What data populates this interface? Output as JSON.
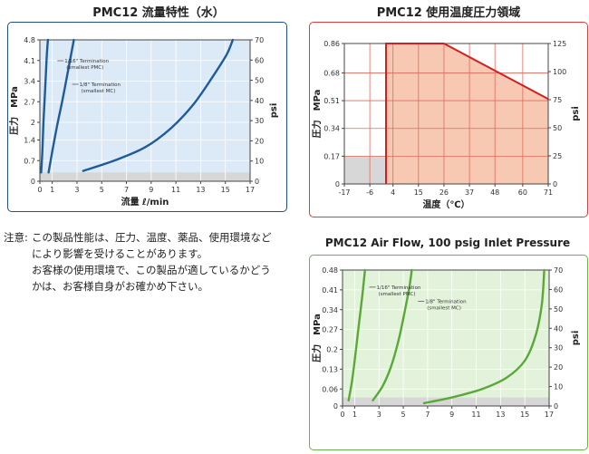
{
  "colors": {
    "water_frame": "#1f4e8c",
    "water_line": "#1f5a9a",
    "water_fill": "#dbeaf6",
    "temp_frame": "#d9403d",
    "temp_line": "#d22020",
    "temp_fill": "#f7c9b2",
    "air_frame": "#6ab04c",
    "air_line": "#5aa83a",
    "air_fill": "#e3f2da",
    "floor_fill": "#d7d7d7"
  },
  "note": {
    "label": "注意:",
    "lines": [
      "この製品性能は、圧力、温度、薬品、使用環境など",
      "により影響を受けることがあります。",
      "お客様の使用環境で、この製品が適しているかどう",
      "かは、お客様自身がお確かめ下さい。"
    ]
  },
  "chart_data": [
    {
      "type": "line",
      "title": "PMC12 流量特性（水）",
      "xlabel": "流量 ℓ/min",
      "ylabel": "圧力　MPa",
      "y2label": "psi",
      "xlim": [
        0,
        17
      ],
      "ylim": [
        0,
        4.8
      ],
      "y2lim": [
        0,
        70
      ],
      "x_ticks": [
        "0",
        "1",
        "3",
        "5",
        "7",
        "9",
        "11",
        "13",
        "15",
        "17"
      ],
      "x_tick_values": [
        0,
        1,
        3,
        5,
        7,
        9,
        11,
        13,
        15,
        17
      ],
      "y_ticks": [
        "0",
        "0.7",
        "1.4",
        "2",
        "2.7",
        "3.4",
        "4.1",
        "4.8"
      ],
      "y_tick_values": [
        0,
        0.7,
        1.4,
        2,
        2.7,
        3.4,
        4.1,
        4.8
      ],
      "y2_ticks": [
        "0",
        "10",
        "20",
        "30",
        "40",
        "50",
        "60",
        "70"
      ],
      "floor_level": 0.3,
      "series": [
        {
          "name": "",
          "points": [
            [
              0.1,
              0.3
            ],
            [
              0.2,
              1.0
            ],
            [
              0.3,
              2.1
            ],
            [
              0.45,
              3.3
            ],
            [
              0.55,
              4.2
            ],
            [
              0.65,
              4.8
            ]
          ]
        },
        {
          "name": "1/16\" Termination (smallest PMC)",
          "points": [
            [
              0.7,
              0.3
            ],
            [
              1.0,
              1.0
            ],
            [
              1.4,
              1.9
            ],
            [
              1.85,
              2.8
            ],
            [
              2.3,
              3.8
            ],
            [
              2.75,
              4.8
            ]
          ]
        },
        {
          "name": "1/8\" Termination (smallest MC)",
          "points": [
            [
              3.5,
              0.35
            ],
            [
              6.0,
              0.7
            ],
            [
              8.5,
              1.15
            ],
            [
              10.6,
              1.8
            ],
            [
              12.4,
              2.6
            ],
            [
              13.9,
              3.5
            ],
            [
              15.1,
              4.3
            ],
            [
              15.6,
              4.8
            ]
          ]
        }
      ],
      "annotations": [
        {
          "text": "1/16\" Termination",
          "text2": "(smallest PMC)",
          "x": 2.0,
          "y": 4.0
        },
        {
          "text": "1/8\" Termination",
          "text2": "(smallest MC)",
          "x": 3.2,
          "y": 3.2
        }
      ]
    },
    {
      "type": "area",
      "title": "PMC12 使用温度圧力領域",
      "xlabel": "温度（℃）",
      "ylabel": "圧力　MPa",
      "y2label": "psi",
      "xlim": [
        -17,
        71
      ],
      "ylim": [
        0,
        0.86
      ],
      "y2lim": [
        0,
        125
      ],
      "x_ticks": [
        "-17",
        "-6",
        "4",
        "15",
        "26",
        "37",
        "48",
        "60",
        "71"
      ],
      "x_tick_values": [
        -17,
        -6,
        4,
        15,
        26,
        37,
        48,
        60,
        71
      ],
      "y_ticks": [
        "0",
        "0.17",
        "0.34",
        "0.51",
        "0.68",
        "0.86"
      ],
      "y_tick_values": [
        0,
        0.17,
        0.34,
        0.51,
        0.68,
        0.86
      ],
      "y2_ticks": [
        "0",
        "25",
        "50",
        "75",
        "100",
        "125"
      ],
      "floor_level": 0.17,
      "series": [
        {
          "name": "",
          "points": [
            [
              1,
              0
            ],
            [
              1,
              0.86
            ],
            [
              26,
              0.86
            ],
            [
              71,
              0.52
            ],
            [
              71,
              0
            ]
          ]
        }
      ]
    },
    {
      "type": "line",
      "title": "PMC12 Air Flow, 100 psig Inlet Pressure",
      "xlabel": "",
      "ylabel": "圧力　MPa",
      "y2label": "psi",
      "xlim": [
        0,
        17
      ],
      "ylim": [
        0,
        0.48
      ],
      "y2lim": [
        0,
        70
      ],
      "x_ticks": [
        "0",
        "1",
        "3",
        "5",
        "7",
        "9",
        "11",
        "13",
        "15",
        "17"
      ],
      "x_tick_values": [
        0,
        1,
        3,
        5,
        7,
        9,
        11,
        13,
        15,
        17
      ],
      "y_ticks": [
        "0",
        "0.06",
        "0.13",
        "0.2",
        "0.27",
        "0.34",
        "0.41",
        "0.48"
      ],
      "y_tick_values": [
        0,
        0.06,
        0.13,
        0.2,
        0.27,
        0.34,
        0.41,
        0.48
      ],
      "y2_ticks": [
        "0",
        "10",
        "20",
        "30",
        "40",
        "50",
        "60",
        "70"
      ],
      "floor_level": 0.03,
      "series": [
        {
          "name": "",
          "points": [
            [
              0.5,
              0.02
            ],
            [
              0.75,
              0.08
            ],
            [
              1.0,
              0.16
            ],
            [
              1.3,
              0.27
            ],
            [
              1.6,
              0.38
            ],
            [
              1.85,
              0.48
            ]
          ]
        },
        {
          "name": "1/16\" Termination (smallest PMC)",
          "points": [
            [
              2.5,
              0.02
            ],
            [
              3.3,
              0.07
            ],
            [
              4.0,
              0.14
            ],
            [
              4.6,
              0.23
            ],
            [
              5.1,
              0.33
            ],
            [
              5.5,
              0.42
            ],
            [
              5.7,
              0.48
            ]
          ]
        },
        {
          "name": "1/8\" Termination (smallest MC)",
          "points": [
            [
              6.7,
              0.01
            ],
            [
              9.0,
              0.03
            ],
            [
              11.5,
              0.06
            ],
            [
              13.5,
              0.1
            ],
            [
              15.0,
              0.16
            ],
            [
              15.9,
              0.25
            ],
            [
              16.4,
              0.36
            ],
            [
              16.6,
              0.48
            ]
          ]
        }
      ],
      "annotations": [
        {
          "text": "1/16\" Termination",
          "text2": "(smallest PMC)",
          "x": 2.8,
          "y": 0.41
        },
        {
          "text": "1/8\" Termination",
          "text2": "(smallest MC)",
          "x": 6.8,
          "y": 0.36
        }
      ]
    }
  ]
}
